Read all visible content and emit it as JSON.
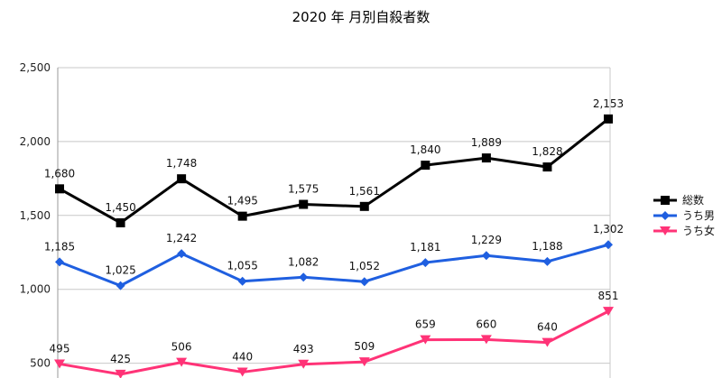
{
  "chart_data": {
    "type": "line",
    "title": "2020 年 月別自殺者数",
    "categories": [
      "",
      "",
      "",
      "",
      "",
      "",
      "",
      "",
      "",
      ""
    ],
    "series": [
      {
        "name": "総数",
        "color": "#000000",
        "marker": "square",
        "values": [
          1680,
          1450,
          1748,
          1495,
          1575,
          1561,
          1840,
          1889,
          1828,
          2153
        ],
        "labels": [
          "1,680",
          "1,450",
          "1,748",
          "1,495",
          "1,575",
          "1,561",
          "1,840",
          "1,889",
          "1,828",
          "2,153"
        ]
      },
      {
        "name": "うち男",
        "color": "#1f5fe0",
        "marker": "diamond",
        "values": [
          1185,
          1025,
          1242,
          1055,
          1082,
          1052,
          1181,
          1229,
          1188,
          1302
        ],
        "labels": [
          "1,185",
          "1,025",
          "1,242",
          "1,055",
          "1,082",
          "1,052",
          "1,181",
          "1,229",
          "1,188",
          "1,302"
        ]
      },
      {
        "name": "うち女",
        "color": "#ff3377",
        "marker": "triangle-down",
        "values": [
          495,
          425,
          506,
          440,
          493,
          509,
          659,
          660,
          640,
          851
        ],
        "labels": [
          "495",
          "425",
          "506",
          "440",
          "493",
          "509",
          "659",
          "660",
          "640",
          "851"
        ]
      }
    ],
    "yticks": [
      500,
      1000,
      1500,
      2000,
      2500
    ],
    "ytick_labels": [
      "500",
      "1,000",
      "1,500",
      "2,000",
      "2,500"
    ],
    "ylim": [
      400,
      2500
    ],
    "grid": true,
    "legend_position": "right"
  }
}
